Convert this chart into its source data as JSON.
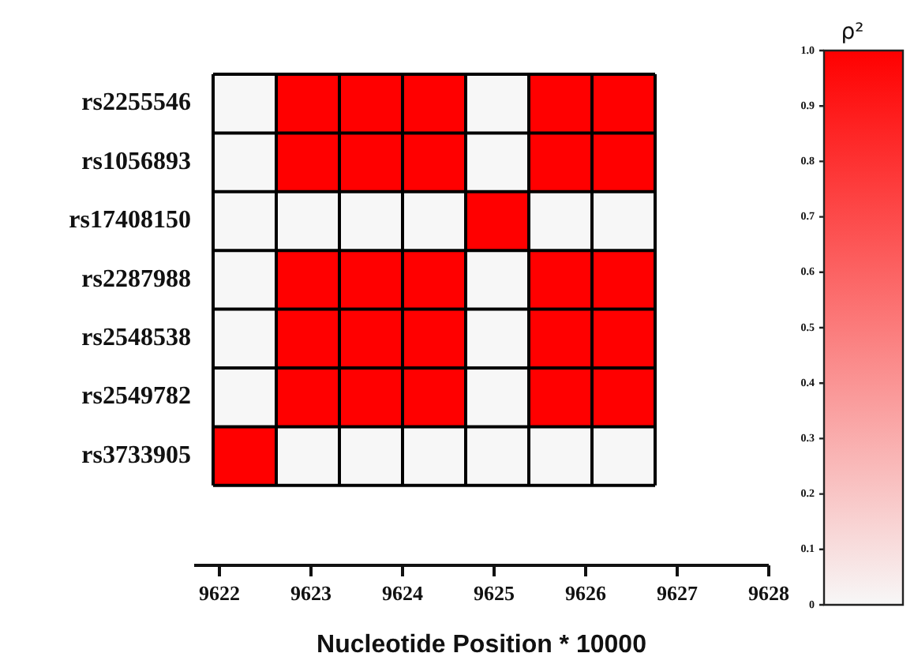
{
  "chart_data": {
    "type": "heatmap",
    "clabel": "ρ²",
    "categories": [
      null,
      null,
      null,
      null,
      null,
      null,
      null
    ],
    "y_categories": [
      "rs2255546",
      "rs1056893",
      "rs17408150",
      "rs2287988",
      "rs2548538",
      "rs2549782",
      "rs3733905"
    ],
    "cells": [
      [
        0,
        1,
        1,
        1,
        0,
        1,
        1
      ],
      [
        0,
        1,
        1,
        1,
        0,
        1,
        1
      ],
      [
        0,
        0,
        0,
        0,
        1,
        0,
        0
      ],
      [
        0,
        1,
        1,
        1,
        0,
        1,
        1
      ],
      [
        0,
        1,
        1,
        1,
        0,
        1,
        1
      ],
      [
        0,
        1,
        1,
        1,
        0,
        1,
        1
      ],
      [
        1,
        0,
        0,
        0,
        0,
        0,
        0
      ]
    ],
    "clim": [
      0,
      1
    ],
    "cticks": [
      0,
      0.1,
      0.2,
      0.3,
      0.4,
      0.5,
      0.6,
      0.7,
      0.8,
      0.9,
      {
        "value": 1,
        "label": "1.0"
      }
    ],
    "annotations": [
      "9622",
      "9623",
      "9624",
      "9625",
      "9626",
      "9627",
      "9628",
      "Nucleotide Position * 10000"
    ]
  }
}
